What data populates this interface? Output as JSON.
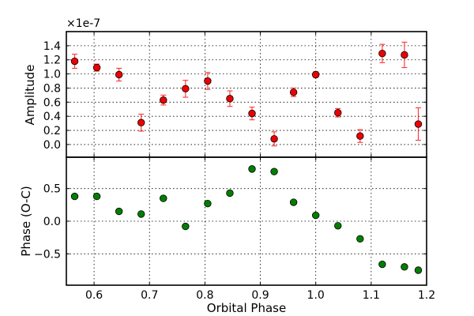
{
  "chart_data": [
    {
      "type": "scatter",
      "ylabel": "Amplitude",
      "offset_label": "×1e-7",
      "offset_factor": 1e-07,
      "xlim": [
        0.55,
        1.2
      ],
      "ylim": [
        -0.18,
        1.6
      ],
      "yticks": [
        0.0,
        0.2,
        0.4,
        0.6,
        0.8,
        1.0,
        1.2,
        1.4
      ],
      "ytick_labels": [
        "0.0",
        "0.2",
        "0.4",
        "0.6",
        "0.8",
        "1.0",
        "1.2",
        "1.4"
      ],
      "grid": true,
      "marker_color": "#ee0000",
      "errorbar_color": "#ff3333",
      "series": [
        {
          "x": [
            0.565,
            0.605,
            0.645,
            0.685,
            0.725,
            0.765,
            0.805,
            0.845,
            0.885,
            0.925,
            0.96,
            1.0,
            1.04,
            1.08,
            1.12,
            1.16,
            1.185
          ],
          "y": [
            1.18,
            1.09,
            0.99,
            0.31,
            0.63,
            0.79,
            0.9,
            0.65,
            0.44,
            0.08,
            0.74,
            0.99,
            0.45,
            0.12,
            1.29,
            1.27,
            0.29
          ],
          "yerr": [
            0.1,
            0.05,
            0.09,
            0.12,
            0.07,
            0.12,
            0.12,
            0.11,
            0.09,
            0.1,
            0.06,
            0.04,
            0.06,
            0.09,
            0.13,
            0.18,
            0.23
          ]
        }
      ]
    },
    {
      "type": "scatter",
      "xlabel": "Orbital Phase",
      "ylabel": "Phase (O-C)",
      "xlim": [
        0.55,
        1.2
      ],
      "ylim": [
        -0.98,
        0.98
      ],
      "xticks": [
        0.6,
        0.7,
        0.8,
        0.9,
        1.0,
        1.1,
        1.2
      ],
      "xtick_labels": [
        "0.6",
        "0.7",
        "0.8",
        "0.9",
        "1.0",
        "1.1",
        "1.2"
      ],
      "yticks": [
        -0.5,
        0.0,
        0.5
      ],
      "ytick_labels": [
        "−0.5",
        "0.0",
        "0.5"
      ],
      "grid": true,
      "marker_color": "#007f00",
      "series": [
        {
          "x": [
            0.565,
            0.605,
            0.645,
            0.685,
            0.725,
            0.765,
            0.805,
            0.845,
            0.885,
            0.925,
            0.96,
            1.0,
            1.04,
            1.08,
            1.12,
            1.16,
            1.185
          ],
          "y": [
            0.38,
            0.38,
            0.15,
            0.11,
            0.35,
            -0.08,
            0.27,
            0.43,
            0.8,
            0.76,
            0.29,
            0.09,
            -0.07,
            -0.27,
            -0.66,
            -0.7,
            -0.75
          ]
        }
      ]
    }
  ]
}
